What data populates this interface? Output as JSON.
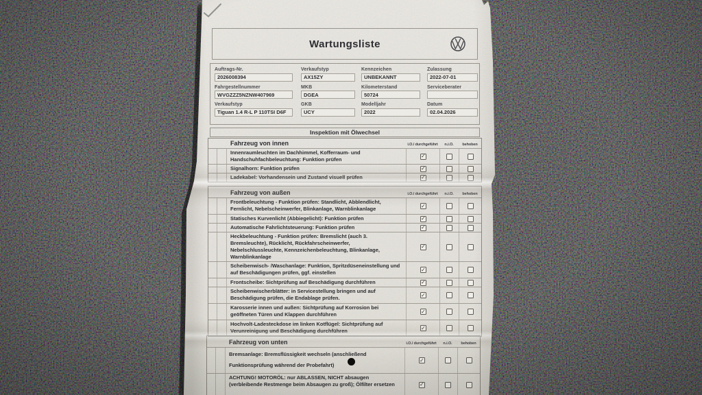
{
  "header": {
    "title": "Wartungsliste",
    "logo": "vw-logo"
  },
  "vehicle_form": {
    "fields": [
      {
        "label": "Auftrags-Nr.",
        "value": "2026008394"
      },
      {
        "label": "Verkaufstyp",
        "value": "AX15ZY"
      },
      {
        "label": "Kennzeichen",
        "value": "UNBEKANNT"
      },
      {
        "label": "Zulassung",
        "value": "2022-07-01"
      },
      {
        "label": "Fahrgestellnummer",
        "value": "WVGZZZ5NZNW407969"
      },
      {
        "label": "MKB",
        "value": "DGEA"
      },
      {
        "label": "Kilometerstand",
        "value": "50724"
      },
      {
        "label": "Serviceberater",
        "value": ""
      },
      {
        "label": "Verkaufstyp",
        "value": "Tiguan 1.4 R-L P 110TSI D6F"
      },
      {
        "label": "GKB",
        "value": "UCY"
      },
      {
        "label": "Modelljahr",
        "value": "2022"
      },
      {
        "label": "Datum",
        "value": "02.04.2026"
      }
    ]
  },
  "section_title": "Inspektion mit Ölwechsel",
  "check_columns": [
    "i.O./ durchgeführt",
    "n.i.O.",
    "behoben"
  ],
  "checklist_tables": [
    {
      "title": "Fahrzeug von innen",
      "rows": [
        {
          "text": "Innenraumleuchten im Dachhimmel, Kofferraum- und Handschuhfachbeleuchtung: Funktion prüfen",
          "io": true,
          "nio": false,
          "behoben": false
        },
        {
          "text": "Signalhorn: Funktion prüfen",
          "io": true,
          "nio": false,
          "behoben": false
        },
        {
          "text": "Ladekabel: Vorhandensein und Zustand visuell prüfen",
          "io": true,
          "nio": false,
          "behoben": false
        }
      ]
    },
    {
      "title": "Fahrzeug von außen",
      "rows": [
        {
          "text": "Frontbeleuchtung - Funktion prüfen: Standlicht, Abblendlicht, Fernlicht, Nebelscheinwerfer, Blinkanlage, Warnblinkanlage",
          "io": true,
          "nio": false,
          "behoben": false
        },
        {
          "text": "Statisches Kurvenlicht (Abbiegelicht): Funktion prüfen",
          "io": true,
          "nio": false,
          "behoben": false
        },
        {
          "text": "Automatische Fahrlichtsteuerung: Funktion prüfen",
          "io": true,
          "nio": false,
          "behoben": false
        },
        {
          "text": "Heckbeleuchtung - Funktion prüfen: Bremslicht (auch 3. Bremsleuchte), Rücklicht, Rückfahrscheinwerfer, Nebelschlussleuchte, Kennzeichenbeleuchtung, Blinkanlage, Warnblinkanlage",
          "io": true,
          "nio": false,
          "behoben": false
        },
        {
          "text": "Scheibenwisch- /Waschanlage: Funktion, Spritzdüseneinstellung und auf Beschädigungen prüfen, ggf. einstellen",
          "io": true,
          "nio": false,
          "behoben": false
        },
        {
          "text": "Frontscheibe: Sichtprüfung auf Beschädigung durchführen",
          "io": true,
          "nio": false,
          "behoben": false
        },
        {
          "text": "Scheibenwischerblätter: in Servicestellung bringen und auf Beschädigung prüfen, die Endablage prüfen.",
          "io": true,
          "nio": false,
          "behoben": false
        },
        {
          "text": "Karosserie innen und außen: Sichtprüfung auf Korrosion bei geöffneten Türen und Klappen durchführen",
          "io": true,
          "nio": false,
          "behoben": false
        },
        {
          "text": "Hochvolt-Ladesteckdose im linken Kotflügel: Sichtprüfung auf Verunreinigung und Beschädigung durchführen",
          "io": true,
          "nio": false,
          "behoben": false
        }
      ]
    },
    {
      "title": "Fahrzeug von unten",
      "rows": [
        {
          "text": "Bremsanlage: Bremsflüssigkeit wechseln (anschließend Funktionsprüfung während der Probefahrt)",
          "io": true,
          "nio": false,
          "behoben": false,
          "ink_dot": true
        },
        {
          "text": "ACHTUNG! MOTORÖL: nur ABLASSEN, NICHT absaugen (verbleibende Restmenge beim Absaugen zu groß); Ölfilter ersetzen",
          "io": true,
          "nio": false,
          "behoben": false
        }
      ]
    }
  ]
}
